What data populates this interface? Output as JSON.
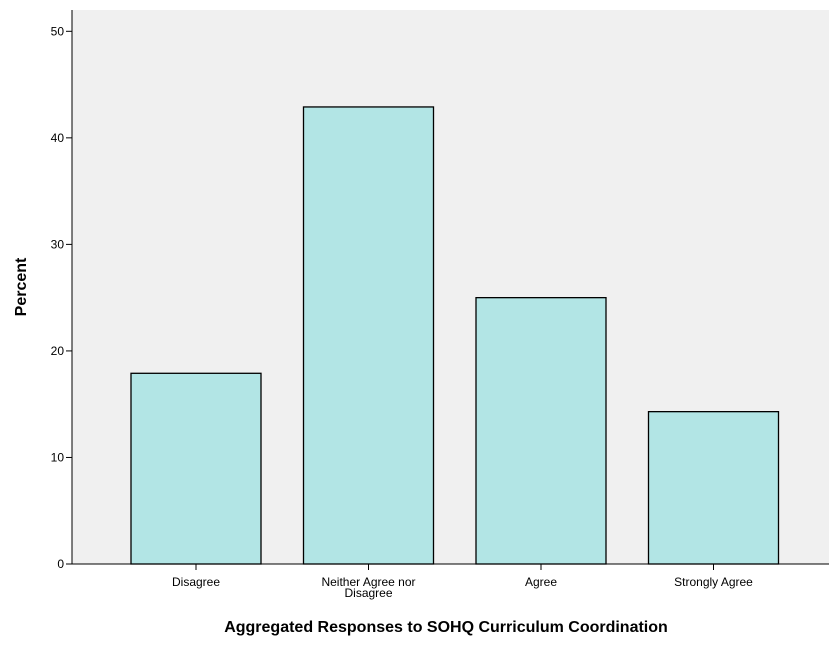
{
  "chart_data": {
    "type": "bar",
    "categories": [
      "Disagree",
      "Neither Agree nor Disagree",
      "Agree",
      "Strongly Agree"
    ],
    "category_label_lines": [
      [
        "Disagree"
      ],
      [
        "Neither Agree nor",
        "Disagree"
      ],
      [
        "Agree"
      ],
      [
        "Strongly Agree"
      ]
    ],
    "values": [
      17.9,
      42.9,
      25.0,
      14.3
    ],
    "title": "",
    "xlabel": "Aggregated Responses to SOHQ Curriculum Coordination",
    "ylabel": "Percent",
    "ylim": [
      0,
      52
    ],
    "yticks": [
      0,
      10,
      20,
      30,
      40,
      50
    ],
    "grid": false,
    "legend": "none",
    "colors": {
      "plot_background": "#f0f0f0",
      "bar_fill": "#b2e5e5",
      "bar_stroke": "#000000"
    }
  }
}
